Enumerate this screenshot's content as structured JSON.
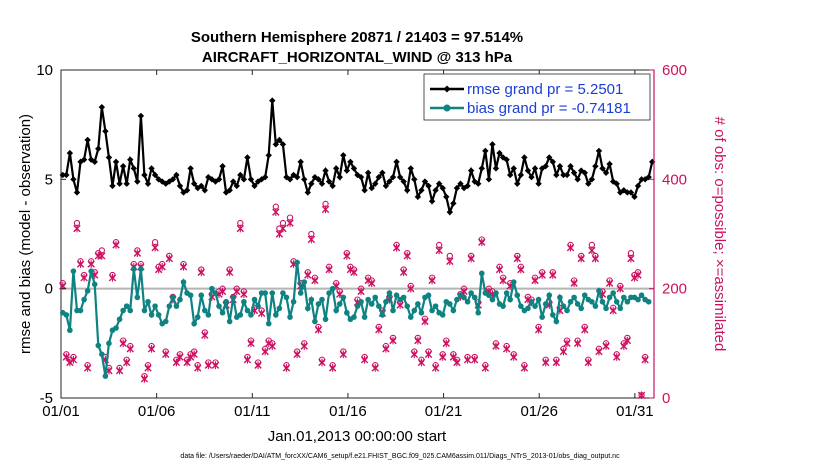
{
  "chart_data": {
    "type": "line",
    "title_line1": "Southern Hemisphere 20871 / 21403 = 97.514%",
    "title_line2": "AIRCRAFT_HORIZONTAL_WIND @ 313 hPa",
    "xlabel": "Jan.01,2013 00:00:00 start",
    "ylabel_left": "rmse and bias (model - observation)",
    "ylabel_right": "# of obs: o=possible; ×=assimilated",
    "footer": "data file: /Users/raeder/DAI/ATM_forcXX/CAM6_setup/f.e21.FHIST_BGC.f09_025.CAM6assim.011/Diags_NTrS_2013-01/obs_diag_output.nc",
    "x_ticks": [
      "01/01",
      "01/06",
      "01/11",
      "01/16",
      "01/21",
      "01/26",
      "01/31"
    ],
    "x_tick_days": [
      1,
      6,
      11,
      16,
      21,
      26,
      31
    ],
    "xlim_days": [
      1,
      32
    ],
    "y_left_ticks": [
      "-5",
      "0",
      "5",
      "10"
    ],
    "y_left_values": [
      -5,
      0,
      5,
      10
    ],
    "ylim_left": [
      -5,
      10
    ],
    "y_right_ticks": [
      "0",
      "200",
      "400",
      "600"
    ],
    "y_right_values": [
      0,
      200,
      400,
      600
    ],
    "ylim_right": [
      0,
      600
    ],
    "zero_line": 0,
    "colors": {
      "rmse": "#000000",
      "bias": "#0f8282",
      "obs": "#cc1161",
      "zero": "#b5b5b5",
      "legend_text": "#1a3fd6"
    },
    "series": [
      {
        "name": "rmse grand pr = 5.2501",
        "key": "rmse",
        "marker": "diamond",
        "values": [
          5.2,
          5.2,
          6.2,
          5.0,
          4.4,
          5.8,
          5.9,
          6.8,
          5.9,
          5.8,
          6.4,
          8.3,
          7.2,
          6.0,
          4.7,
          5.8,
          4.8,
          5.6,
          4.8,
          5.9,
          5.5,
          4.9,
          7.9,
          5.2,
          4.8,
          5.5,
          5.2,
          5.0,
          4.9,
          4.8,
          4.9,
          5.0,
          5.2,
          4.7,
          4.4,
          4.5,
          5.5,
          4.8,
          4.6,
          4.7,
          4.5,
          5.1,
          5.0,
          4.9,
          5.0,
          5.6,
          4.4,
          4.5,
          4.9,
          4.7,
          5.2,
          5.0,
          6.0,
          5.0,
          4.7,
          4.9,
          5.0,
          5.1,
          6.1,
          8.6,
          6.6,
          6.8,
          6.6,
          5.1,
          5.0,
          5.2,
          5.1,
          5.8,
          5.0,
          4.4,
          4.8,
          5.1,
          5.0,
          4.8,
          5.4,
          4.9,
          4.7,
          5.5,
          5.1,
          6.1,
          5.4,
          5.8,
          5.5,
          5.2,
          5.1,
          4.5,
          5.3,
          4.6,
          4.8,
          5.1,
          5.3,
          4.7,
          4.9,
          5.1,
          5.8,
          5.1,
          4.9,
          4.5,
          5.5,
          5.0,
          4.2,
          4.5,
          4.9,
          4.7,
          4.0,
          4.5,
          4.8,
          4.6,
          4.2,
          3.5,
          3.9,
          4.6,
          4.8,
          4.6,
          4.7,
          5.4,
          4.9,
          4.8,
          5.5,
          6.3,
          5.0,
          6.6,
          5.5,
          6.2,
          6.0,
          5.9,
          5.2,
          5.5,
          4.8,
          5.2,
          6.0,
          5.4,
          5.1,
          5.5,
          4.8,
          5.5,
          5.6,
          6.0,
          5.8,
          5.2,
          5.6,
          5.2,
          5.2,
          5.6,
          5.3,
          5.0,
          5.4,
          5.3,
          4.8,
          5.0,
          5.6,
          6.3,
          5.5,
          5.3,
          5.7,
          4.9,
          4.8,
          4.4,
          4.5,
          4.4,
          4.4,
          4.2,
          4.7,
          5.0,
          5.0,
          5.1,
          5.8
        ]
      },
      {
        "name": "bias grand pr = -0.74181",
        "key": "bias",
        "marker": "circle",
        "values": [
          -1.1,
          -1.2,
          -1.9,
          0.8,
          -1.0,
          -1.0,
          -0.5,
          -0.1,
          0.8,
          0.2,
          -2.6,
          -3.0,
          -4.0,
          -2.5,
          -1.9,
          -1.8,
          -1.4,
          -1.0,
          -0.8,
          -1.0,
          0.9,
          -0.4,
          0.9,
          -1.0,
          -0.6,
          -1.2,
          -0.8,
          -1.2,
          -1.6,
          -1.5,
          -0.8,
          -0.4,
          -0.8,
          -0.5,
          0.3,
          -0.2,
          -0.3,
          -1.6,
          -1.3,
          -0.3,
          -1.0,
          -1.2,
          0.0,
          -0.2,
          -0.8,
          -1.1,
          -0.6,
          -1.5,
          -0.4,
          -1.3,
          -1.2,
          -0.6,
          -1.0,
          -1.2,
          -0.5,
          -0.8,
          -0.2,
          -0.2,
          -1.6,
          -0.2,
          -1.2,
          -0.9,
          -0.2,
          -0.4,
          -1.3,
          -0.6,
          1.2,
          -0.2,
          0.3,
          -0.9,
          -0.5,
          -1.5,
          -0.7,
          -0.5,
          -1.4,
          -0.2,
          0.0,
          -1.0,
          -0.7,
          -0.4,
          -1.1,
          -1.4,
          -1.3,
          -0.8,
          -0.6,
          -1.3,
          -0.5,
          -0.7,
          -0.4,
          -0.8,
          -1.2,
          -0.6,
          -0.2,
          -1.0,
          -0.3,
          -0.5,
          -0.4,
          -0.8,
          -1.3,
          -1.0,
          -0.7,
          -1.1,
          -0.4,
          -0.3,
          -1.0,
          -0.8,
          -1.1,
          -1.2,
          -0.6,
          -0.7,
          -1.0,
          -0.5,
          -0.3,
          -0.4,
          -0.6,
          -0.2,
          -0.4,
          -1.1,
          0.7,
          -0.2,
          -0.3,
          -0.5,
          -0.2,
          -0.7,
          -0.8,
          -0.2,
          -0.5,
          0.3,
          -0.3,
          -0.8,
          -1.0,
          -0.9,
          -0.6,
          -0.8,
          -0.5,
          -1.3,
          -0.7,
          -0.3,
          -1.2,
          -1.5,
          -0.4,
          -0.8,
          -1.0,
          -0.6,
          -0.4,
          -0.7,
          -0.9,
          -0.3,
          -0.5,
          -0.6,
          -0.8,
          -0.1,
          -0.6,
          -0.9,
          -0.4,
          -0.2,
          -0.6,
          -0.9,
          -0.4,
          -0.6,
          -0.4,
          -0.4,
          -0.5,
          -0.3,
          -0.5,
          -0.6
        ]
      },
      {
        "name": "obs possible",
        "key": "obs_possible",
        "marker": "o",
        "axis": "right",
        "values": [
          210,
          80,
          70,
          75,
          320,
          250,
          225,
          60,
          250,
          230,
          265,
          270,
          75,
          55,
          225,
          285,
          55,
          105,
          70,
          95,
          245,
          270,
          245,
          40,
          60,
          95,
          285,
          240,
          245,
          85,
          260,
          185,
          70,
          80,
          245,
          70,
          80,
          85,
          60,
          235,
          120,
          65,
          190,
          65,
          195,
          200,
          175,
          235,
          185,
          200,
          320,
          195,
          75,
          105,
          165,
          65,
          160,
          90,
          105,
          100,
          350,
          310,
          320,
          60,
          330,
          250,
          85,
          210,
          100,
          230,
          300,
          220,
          130,
          70,
          355,
          240,
          60,
          210,
          195,
          85,
          265,
          240,
          235,
          180,
          200,
          75,
          220,
          215,
          60,
          130,
          160,
          95,
          185,
          110,
          280,
          175,
          235,
          265,
          205,
          85,
          110,
          70,
          145,
          85,
          220,
          60,
          280,
          80,
          105,
          260,
          80,
          70,
          190,
          200,
          75,
          260,
          75,
          175,
          290,
          60,
          200,
          195,
          100,
          240,
          220,
          95,
          210,
          80,
          260,
          240,
          60,
          185,
          180,
          220,
          130,
          230,
          70,
          175,
          230,
          70,
          165,
          90,
          105,
          280,
          215,
          105,
          260,
          130,
          70,
          280,
          260,
          90,
          195,
          100,
          215,
          165,
          80,
          205,
          100,
          110,
          265,
          225,
          230,
          5,
          75
        ]
      },
      {
        "name": "obs assimilated",
        "key": "obs_assimilated",
        "marker": "x",
        "axis": "right",
        "values": [
          205,
          75,
          65,
          70,
          310,
          245,
          220,
          55,
          245,
          225,
          260,
          260,
          70,
          50,
          220,
          280,
          50,
          100,
          65,
          90,
          240,
          265,
          240,
          35,
          55,
          90,
          275,
          235,
          240,
          80,
          255,
          180,
          65,
          75,
          240,
          65,
          75,
          80,
          55,
          230,
          115,
          60,
          185,
          60,
          190,
          195,
          170,
          230,
          180,
          195,
          310,
          190,
          70,
          100,
          160,
          60,
          155,
          85,
          100,
          95,
          340,
          300,
          310,
          55,
          320,
          245,
          80,
          205,
          95,
          225,
          290,
          215,
          125,
          65,
          345,
          235,
          55,
          205,
          190,
          80,
          260,
          235,
          230,
          175,
          195,
          70,
          215,
          210,
          55,
          125,
          155,
          90,
          180,
          105,
          275,
          170,
          230,
          260,
          200,
          80,
          105,
          65,
          140,
          80,
          215,
          55,
          270,
          75,
          100,
          250,
          75,
          65,
          185,
          195,
          70,
          255,
          70,
          170,
          285,
          55,
          195,
          190,
          95,
          235,
          215,
          90,
          205,
          75,
          255,
          235,
          55,
          180,
          175,
          215,
          125,
          225,
          65,
          170,
          225,
          65,
          160,
          85,
          100,
          275,
          210,
          100,
          255,
          125,
          65,
          270,
          255,
          85,
          190,
          95,
          210,
          160,
          75,
          200,
          95,
          105,
          255,
          220,
          225,
          5,
          70
        ]
      }
    ]
  }
}
